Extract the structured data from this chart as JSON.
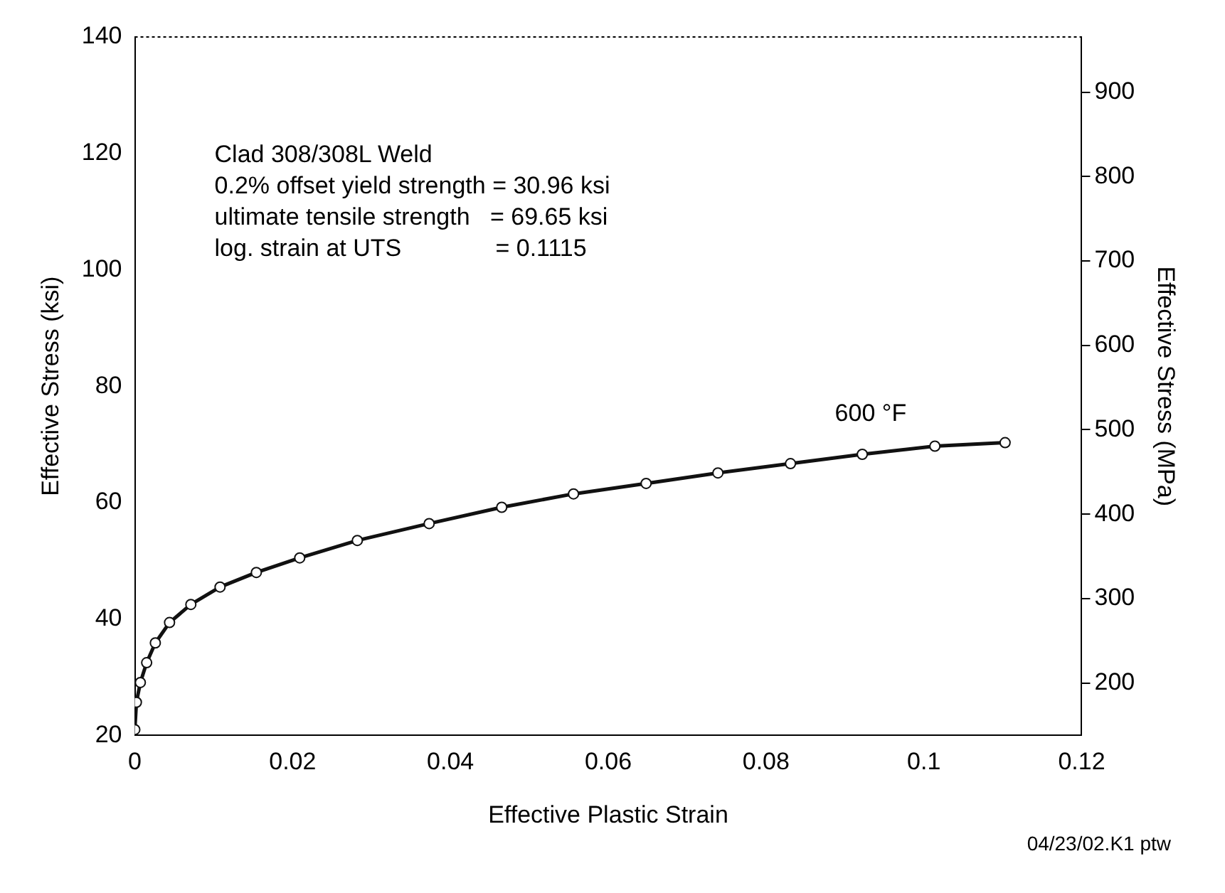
{
  "chart_data": {
    "type": "line",
    "xlabel": "Effective Plastic Strain",
    "ylabel": "Effective Stress (ksi)",
    "y2label": "Effective Stress (MPa)",
    "xlim": [
      0,
      0.12
    ],
    "xticks": [
      0,
      0.02,
      0.04,
      0.06,
      0.08,
      0.1,
      0.12
    ],
    "ylim": [
      20,
      140
    ],
    "yticks": [
      20,
      40,
      60,
      80,
      100,
      120,
      140
    ],
    "y2lim": [
      137.9,
      965.3
    ],
    "y2ticks": [
      200,
      300,
      400,
      500,
      600,
      700,
      800,
      900
    ],
    "grid": false,
    "legend": false,
    "marker": "circle",
    "line_style": "solid",
    "series": [
      {
        "name": "600 °F",
        "color": "#111111",
        "x": [
          0,
          0.0002,
          0.0007,
          0.0015,
          0.0026,
          0.0044,
          0.0071,
          0.0108,
          0.0154,
          0.0209,
          0.0282,
          0.0373,
          0.0465,
          0.0556,
          0.0648,
          0.0739,
          0.0831,
          0.0922,
          0.1014,
          0.1103
        ],
        "values": [
          21,
          25.7,
          29.1,
          32.5,
          35.9,
          39.4,
          42.5,
          45.5,
          48.0,
          50.5,
          53.5,
          56.4,
          59.2,
          61.5,
          63.3,
          65.1,
          66.7,
          68.3,
          69.7,
          70.3
        ]
      }
    ],
    "annotations": [
      "Clad 308/308L Weld",
      "0.2% offset yield strength = 30.96 ksi",
      "ultimate tensile strength   = 69.65 ksi",
      "log. strain at UTS              = 0.1115",
      "04/23/02.K1 ptw"
    ]
  }
}
